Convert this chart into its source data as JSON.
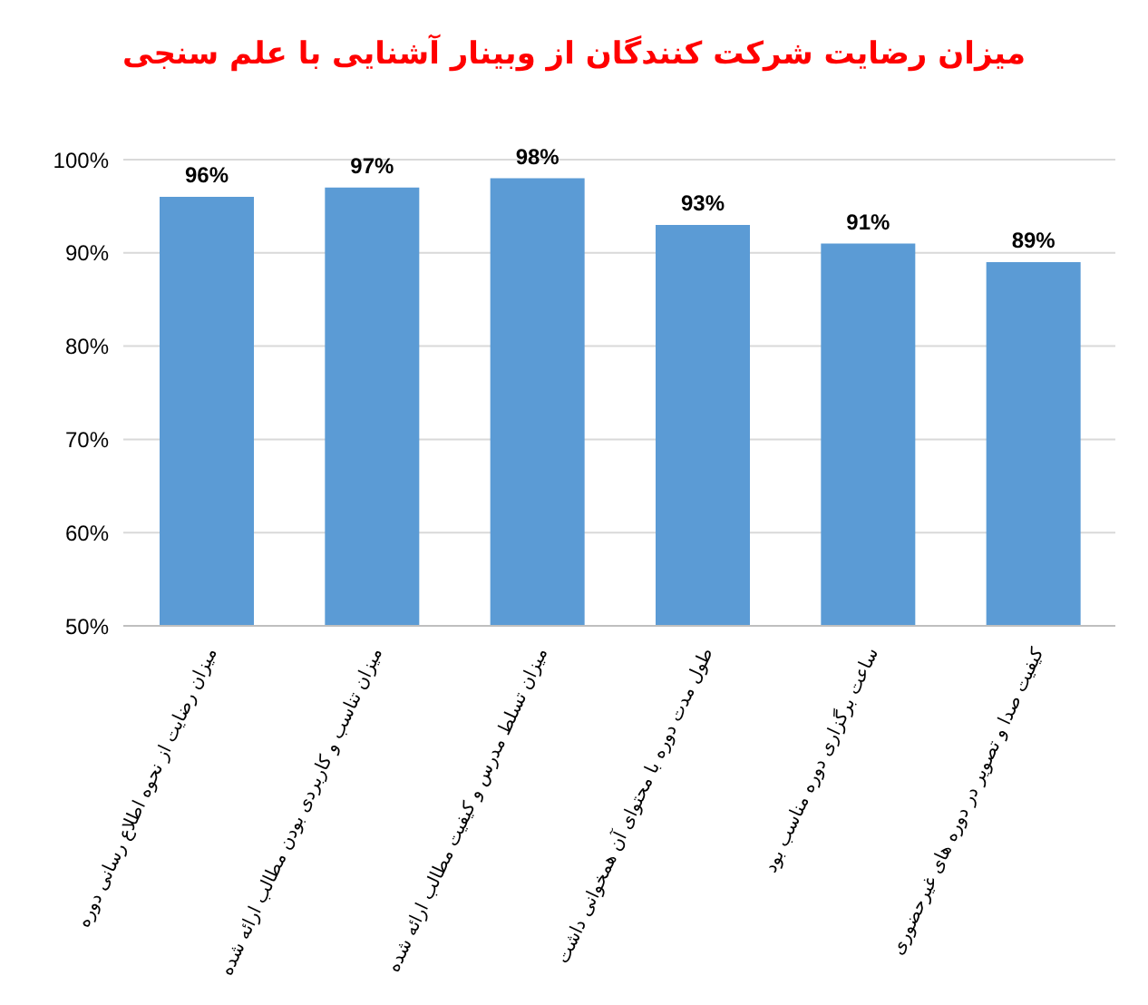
{
  "chart_data": {
    "type": "bar",
    "title": "میزان رضایت شرکت کنندگان از وبینار آشنایی با علم سنجی",
    "categories": [
      "میزان رضایت از نحوه اطلاع رسانی دوره",
      "میزان تناسب و کاربردی بودن مطالب ارائه شده",
      "میزان تسلط مدرس و کیفیت مطالب ارائه شده",
      "طول مدت دوره با محتوای آن همخوانی داشت",
      "ساعت برگزاری دوره مناسب بود",
      "کیفیت صدا و تصویر در دوره های غیرحضوری"
    ],
    "values": [
      96,
      97,
      98,
      93,
      91,
      89
    ],
    "value_labels": [
      "96%",
      "97%",
      "98%",
      "93%",
      "91%",
      "89%"
    ],
    "color": "#5b9bd5",
    "ylim": [
      50,
      100
    ],
    "yticks": [
      {
        "value": 50,
        "label": "50%"
      },
      {
        "value": 60,
        "label": "60%"
      },
      {
        "value": 70,
        "label": "70%"
      },
      {
        "value": 80,
        "label": "80%"
      },
      {
        "value": 90,
        "label": "90%"
      },
      {
        "value": 100,
        "label": "100%"
      }
    ],
    "grid": "y"
  }
}
